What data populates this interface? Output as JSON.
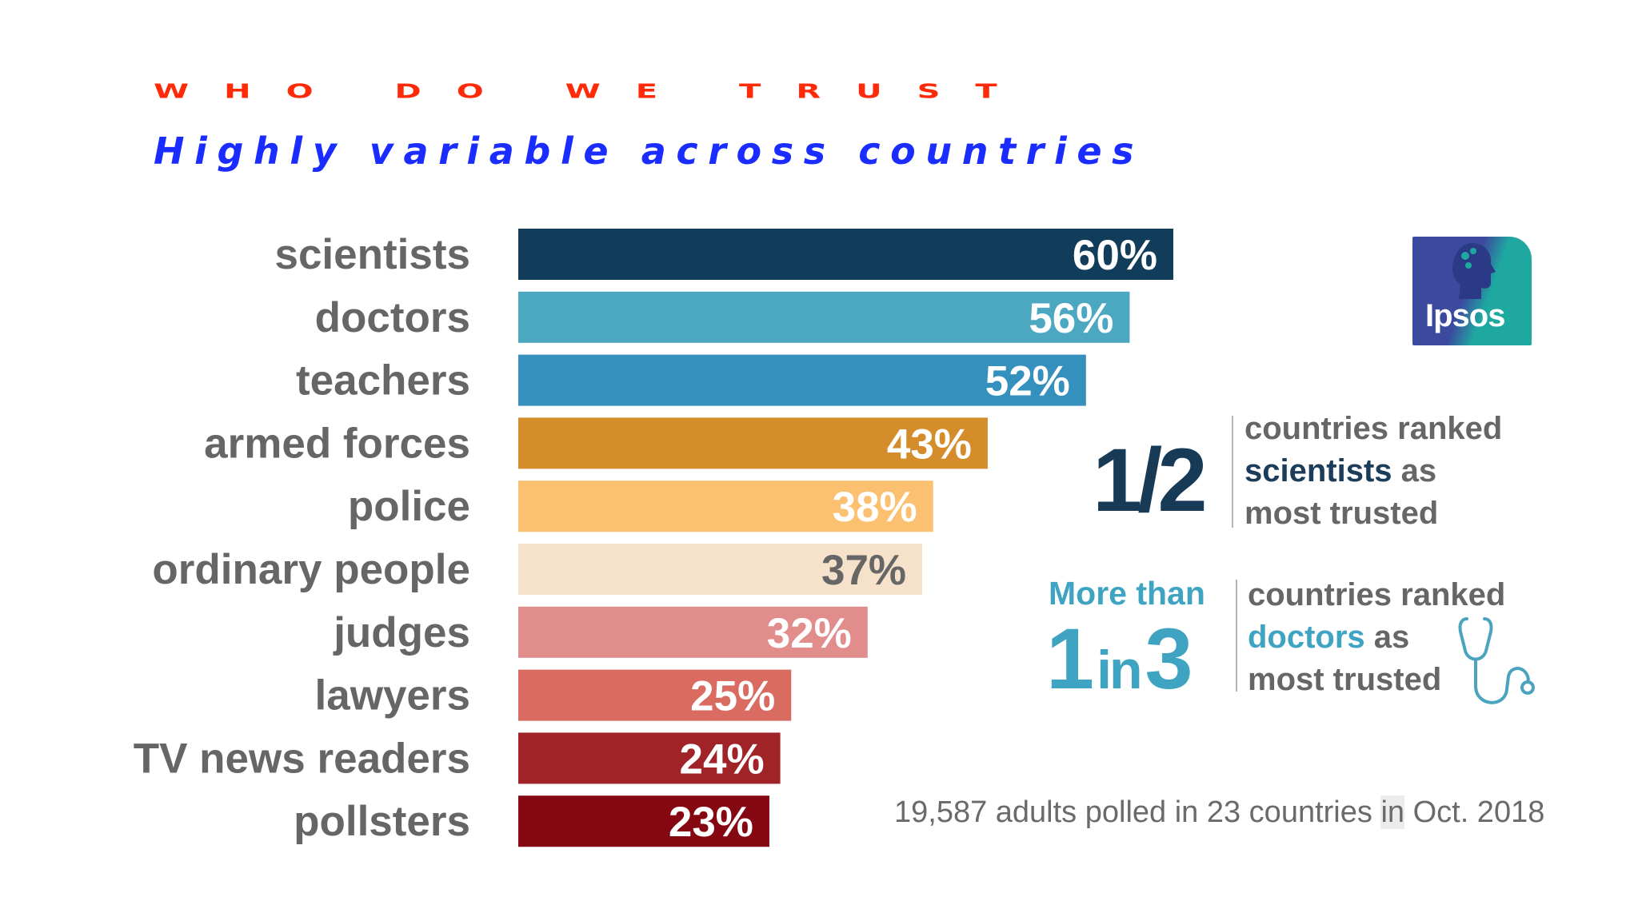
{
  "title": "WHO DO WE TRUST",
  "subtitle": "Highly variable across countries",
  "logo": {
    "text": "Ipsos",
    "colors": [
      "#3b4a9f",
      "#1fa8a0"
    ]
  },
  "chart_data": {
    "type": "bar",
    "orientation": "horizontal",
    "categories": [
      "scientists",
      "doctors",
      "teachers",
      "armed forces",
      "police",
      "ordinary people",
      "judges",
      "lawyers",
      "TV news readers",
      "pollsters"
    ],
    "values": [
      60,
      56,
      52,
      43,
      38,
      37,
      32,
      25,
      24,
      23
    ],
    "value_labels": [
      "60%",
      "56%",
      "52%",
      "43%",
      "38%",
      "37%",
      "32%",
      "25%",
      "24%",
      "23%"
    ],
    "unit": "%",
    "colors": [
      "#123d5a",
      "#4ca7c0",
      "#3590bd",
      "#d58d2c",
      "#fbc170",
      "#f6e2cb",
      "#e08d8b",
      "#d96b61",
      "#a02328",
      "#840711"
    ],
    "label_colors": [
      "#ffffff",
      "#ffffff",
      "#ffffff",
      "#ffffff",
      "#ffffff",
      "#666666",
      "#ffffff",
      "#ffffff",
      "#ffffff",
      "#ffffff"
    ],
    "xlim": [
      0,
      60
    ],
    "grid": false,
    "legend": "none"
  },
  "stats": {
    "half": {
      "big": "1/2",
      "line1": "countries ranked",
      "line2_hl": "scientists",
      "line2_rest": " as",
      "line3": "most trusted"
    },
    "third": {
      "pre": "More than",
      "big_a": "1",
      "big_in": "in",
      "big_b": "3",
      "line1": "countries ranked",
      "line2_hl": "doctors",
      "line2_rest": " as",
      "line3": "most trusted",
      "icon": "stethoscope-icon"
    }
  },
  "footnote": {
    "before": "19,587 adults polled in 23 countries ",
    "highlight": "in",
    "after": " Oct. 2018"
  }
}
